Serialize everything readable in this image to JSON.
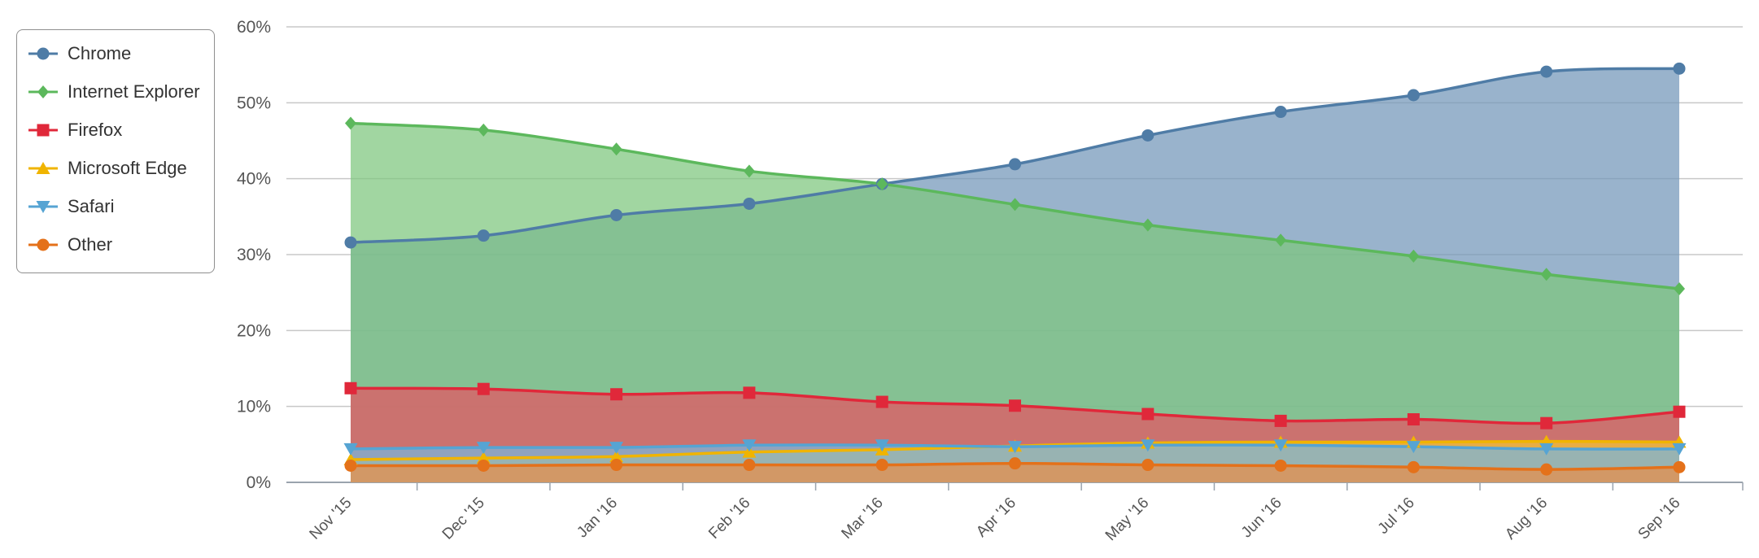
{
  "chart_data": {
    "type": "area",
    "title": "",
    "xlabel": "",
    "ylabel": "",
    "categories": [
      "Nov '15",
      "Dec '15",
      "Jan '16",
      "Feb '16",
      "Mar '16",
      "Apr '16",
      "May '16",
      "Jun '16",
      "Jul '16",
      "Aug '16",
      "Sep '16"
    ],
    "y_ticks": [
      "0%",
      "10%",
      "20%",
      "30%",
      "40%",
      "50%",
      "60%"
    ],
    "ylim": [
      0,
      60
    ],
    "unit": "%",
    "grid": true,
    "legend_position": "top-left",
    "series": [
      {
        "name": "Chrome",
        "marker": "circle",
        "color": "#4f7ca6",
        "values": [
          31.6,
          32.5,
          35.2,
          36.7,
          39.3,
          41.9,
          45.7,
          48.8,
          51.0,
          54.1,
          54.5
        ]
      },
      {
        "name": "Internet Explorer",
        "marker": "diamond",
        "color": "#5cb85c",
        "values": [
          47.3,
          46.4,
          43.9,
          41.0,
          39.3,
          36.6,
          33.9,
          31.9,
          29.8,
          27.4,
          25.5
        ]
      },
      {
        "name": "Firefox",
        "marker": "square",
        "color": "#e0283a",
        "values": [
          12.4,
          12.3,
          11.6,
          11.8,
          10.6,
          10.1,
          9.0,
          8.1,
          8.3,
          7.8,
          9.3
        ]
      },
      {
        "name": "Microsoft Edge",
        "marker": "triangle",
        "color": "#f0b400",
        "values": [
          3.0,
          3.2,
          3.4,
          4.0,
          4.3,
          4.8,
          5.2,
          5.3,
          5.3,
          5.4,
          5.3
        ]
      },
      {
        "name": "Safari",
        "marker": "triangle-down",
        "color": "#56a4d3",
        "values": [
          4.4,
          4.6,
          4.6,
          4.9,
          4.9,
          4.7,
          4.9,
          4.9,
          4.7,
          4.4,
          4.4
        ]
      },
      {
        "name": "Other",
        "marker": "circle",
        "color": "#e4711a",
        "values": [
          2.2,
          2.2,
          2.3,
          2.3,
          2.3,
          2.5,
          2.3,
          2.2,
          2.0,
          1.7,
          2.0
        ]
      }
    ]
  }
}
